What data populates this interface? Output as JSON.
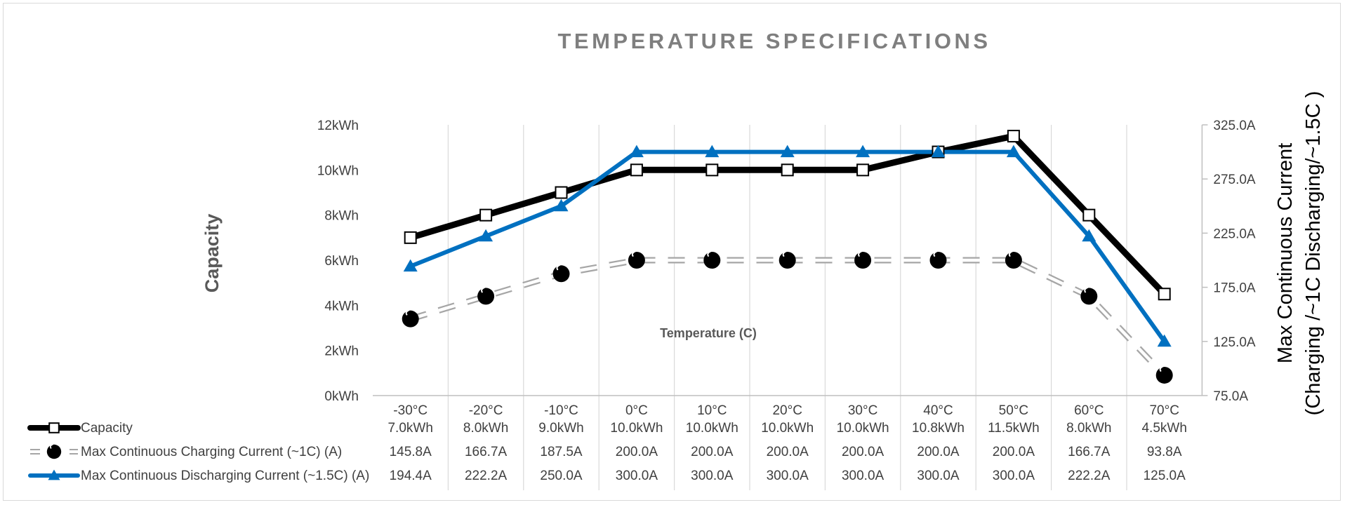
{
  "chart_data": {
    "type": "line",
    "title": "TEMPERATURE SPECIFICATIONS",
    "xlabel": "Temperature (C)",
    "ylabel_left": "Capacity",
    "ylabel_right_line1": "Max Continuous Current",
    "ylabel_right_line2": "(Charging /~1C  Discharging/~1.5C )",
    "categories": [
      "-30°C",
      "-20°C",
      "-10°C",
      "0°C",
      "10°C",
      "20°C",
      "30°C",
      "40°C",
      "50°C",
      "60°C",
      "70°C"
    ],
    "y_left": {
      "unit": "kWh",
      "ylim": [
        0,
        12
      ],
      "ticks": [
        0,
        2,
        4,
        6,
        8,
        10,
        12
      ],
      "tick_labels": [
        "0kWh",
        "2kWh",
        "4kWh",
        "6kWh",
        "8kWh",
        "10kWh",
        "12kWh"
      ]
    },
    "y_right": {
      "unit": "A",
      "ylim": [
        75,
        325
      ],
      "ticks": [
        75,
        125,
        175,
        225,
        275,
        325
      ],
      "tick_labels": [
        "75.0A",
        "125.0A",
        "175.0A",
        "225.0A",
        "275.0A",
        "325.0A"
      ]
    },
    "grid": "vertical",
    "legend_position": "bottom-left data table",
    "series": [
      {
        "name": "Capacity",
        "axis": "left",
        "color": "#000000",
        "marker": "square-hollow",
        "line_style": "solid",
        "values": [
          7.0,
          8.0,
          9.0,
          10.0,
          10.0,
          10.0,
          10.0,
          10.8,
          11.5,
          8.0,
          4.5
        ],
        "labels": [
          "7.0kWh",
          "8.0kWh",
          "9.0kWh",
          "10.0kWh",
          "10.0kWh",
          "10.0kWh",
          "10.0kWh",
          "10.8kWh",
          "11.5kWh",
          "8.0kWh",
          "4.5kWh"
        ]
      },
      {
        "name": "Max Continuous Charging Current (~1C)  (A)",
        "axis": "right",
        "color": "#a6a6a6",
        "marker_color": "#000000",
        "marker": "circle-filled",
        "line_style": "dashed-double",
        "values": [
          145.8,
          166.7,
          187.5,
          200.0,
          200.0,
          200.0,
          200.0,
          200.0,
          200.0,
          166.7,
          93.8
        ],
        "labels": [
          "145.8A",
          "166.7A",
          "187.5A",
          "200.0A",
          "200.0A",
          "200.0A",
          "200.0A",
          "200.0A",
          "200.0A",
          "166.7A",
          "93.8A"
        ]
      },
      {
        "name": "Max Continuous Discharging Current (~1.5C)  (A)",
        "axis": "right",
        "color": "#0070c0",
        "marker": "triangle-filled",
        "line_style": "solid",
        "values": [
          194.4,
          222.2,
          250.0,
          300.0,
          300.0,
          300.0,
          300.0,
          300.0,
          300.0,
          222.2,
          125.0
        ],
        "labels": [
          "194.4A",
          "222.2A",
          "250.0A",
          "300.0A",
          "300.0A",
          "300.0A",
          "300.0A",
          "300.0A",
          "300.0A",
          "222.2A",
          "125.0A"
        ]
      }
    ]
  }
}
